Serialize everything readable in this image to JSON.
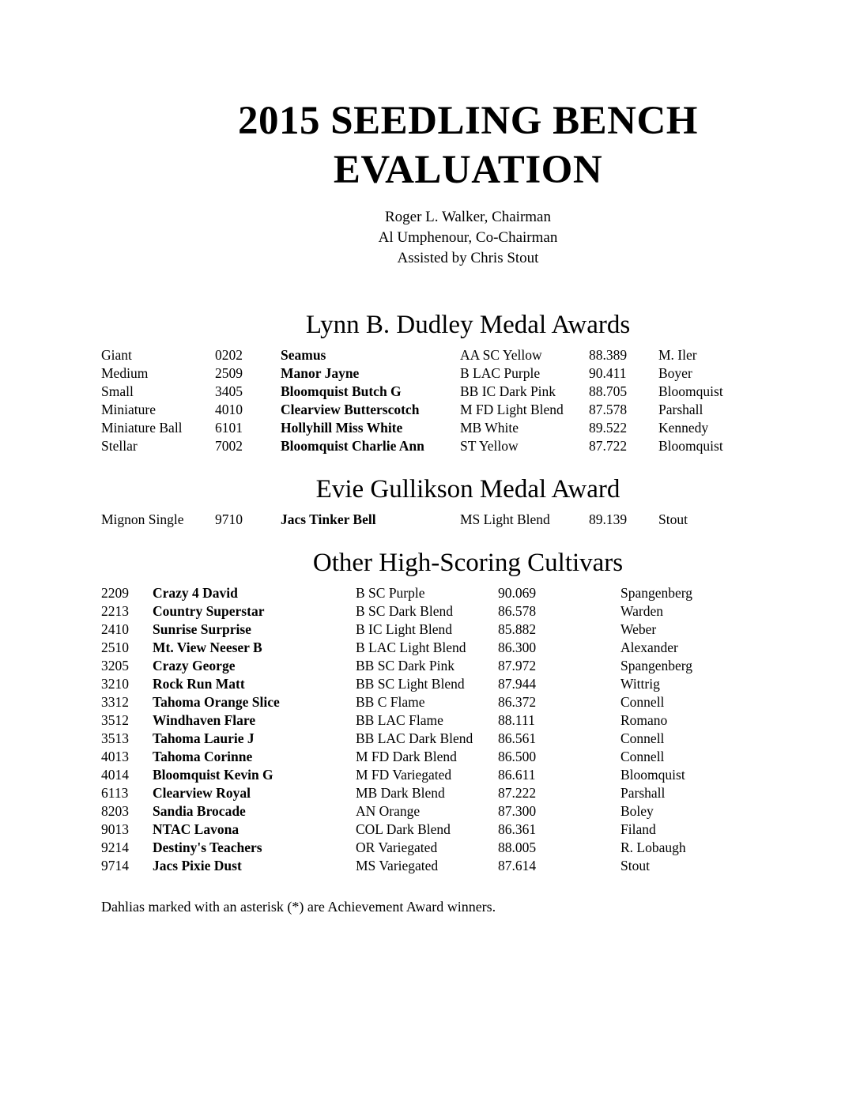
{
  "page": {
    "title": "2015 SEEDLING BENCH EVALUATION",
    "credits": [
      "Roger L. Walker, Chairman",
      "Al Umphenour, Co-Chairman",
      "Assisted by Chris Stout"
    ],
    "footnote": "Dahlias marked with an asterisk (*) are Achievement Award winners."
  },
  "sections": {
    "dudley": {
      "heading": "Lynn B. Dudley Medal Awards",
      "rows": [
        {
          "class": "Giant",
          "number": "0202",
          "name": "Seamus",
          "type": "AA SC Yellow",
          "score": "88.389",
          "originator": "M. Iler"
        },
        {
          "class": "Medium",
          "number": "2509",
          "name": "Manor Jayne",
          "type": "B LAC Purple",
          "score": "90.411",
          "originator": "Boyer"
        },
        {
          "class": "Small",
          "number": "3405",
          "name": "Bloomquist Butch G",
          "type": "BB IC Dark Pink",
          "score": "88.705",
          "originator": "Bloomquist"
        },
        {
          "class": "Miniature",
          "number": "4010",
          "name": "Clearview Butterscotch",
          "type": "M FD Light Blend",
          "score": "87.578",
          "originator": "Parshall"
        },
        {
          "class": "Miniature Ball",
          "number": "6101",
          "name": "Hollyhill Miss White",
          "type": "MB White",
          "score": "89.522",
          "originator": "Kennedy"
        },
        {
          "class": "Stellar",
          "number": "7002",
          "name": "Bloomquist Charlie Ann",
          "type": "ST Yellow",
          "score": "87.722",
          "originator": "Bloomquist"
        }
      ]
    },
    "gullikson": {
      "heading": "Evie Gullikson Medal Award",
      "rows": [
        {
          "class": "Mignon Single",
          "number": "9710",
          "name": "Jacs Tinker Bell",
          "type": "MS Light Blend",
          "score": "89.139",
          "originator": "Stout"
        }
      ]
    },
    "other": {
      "heading": "Other High-Scoring Cultivars",
      "rows": [
        {
          "number": "2209",
          "name": "Crazy 4 David",
          "type": "B SC Purple",
          "score": "90.069",
          "originator": "Spangenberg"
        },
        {
          "number": "2213",
          "name": "Country Superstar",
          "type": "B SC Dark Blend",
          "score": "86.578",
          "originator": "Warden"
        },
        {
          "number": "2410",
          "name": "Sunrise Surprise",
          "type": "B IC Light Blend",
          "score": "85.882",
          "originator": "Weber"
        },
        {
          "number": "2510",
          "name": "Mt. View Neeser B",
          "type": "B LAC Light Blend",
          "score": "86.300",
          "originator": "Alexander"
        },
        {
          "number": "3205",
          "name": "Crazy George",
          "type": "BB SC Dark Pink",
          "score": "87.972",
          "originator": "Spangenberg"
        },
        {
          "number": "3210",
          "name": "Rock Run Matt",
          "type": "BB SC Light Blend",
          "score": "87.944",
          "originator": "Wittrig"
        },
        {
          "number": "3312",
          "name": "Tahoma Orange Slice",
          "type": "BB C Flame",
          "score": "86.372",
          "originator": "Connell"
        },
        {
          "number": "3512",
          "name": "Windhaven Flare",
          "type": "BB LAC Flame",
          "score": "88.111",
          "originator": "Romano"
        },
        {
          "number": "3513",
          "name": "Tahoma Laurie J",
          "type": "BB LAC Dark Blend",
          "score": "86.561",
          "originator": "Connell"
        },
        {
          "number": "4013",
          "name": "Tahoma Corinne",
          "type": "M FD Dark Blend",
          "score": "86.500",
          "originator": "Connell"
        },
        {
          "number": "4014",
          "name": "Bloomquist Kevin G",
          "type": "M FD Variegated",
          "score": "86.611",
          "originator": "Bloomquist"
        },
        {
          "number": "6113",
          "name": "Clearview Royal",
          "type": "MB Dark Blend",
          "score": "87.222",
          "originator": "Parshall"
        },
        {
          "number": "8203",
          "name": "Sandia Brocade",
          "type": "AN Orange",
          "score": "87.300",
          "originator": "Boley"
        },
        {
          "number": "9013",
          "name": "NTAC Lavona",
          "type": "COL Dark Blend",
          "score": "86.361",
          "originator": "Filand"
        },
        {
          "number": "9214",
          "name": "Destiny's Teachers",
          "type": "OR Variegated",
          "score": "88.005",
          "originator": "R. Lobaugh"
        },
        {
          "number": "9714",
          "name": "Jacs Pixie Dust",
          "type": "MS Variegated",
          "score": "87.614",
          "originator": "Stout"
        }
      ]
    }
  }
}
